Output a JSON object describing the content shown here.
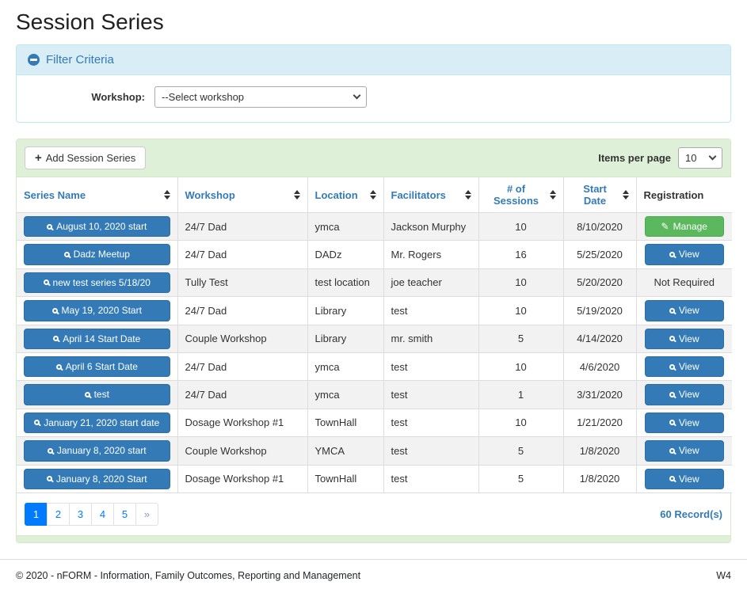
{
  "page": {
    "title": "Session Series",
    "footer": {
      "copyright": "© 2020 - nFORM - Information, Family Outcomes, Reporting and Management",
      "version": "W4"
    }
  },
  "filter": {
    "title": "Filter Criteria",
    "collapse_icon": "minus-circle-icon",
    "workshop_label": "Workshop:",
    "workshop_select_value": "--Select workshop"
  },
  "toolbar": {
    "add_button_label": "Add Session Series",
    "items_per_page_label": "Items per page",
    "items_per_page_value": "10"
  },
  "icons": {
    "plus": "+",
    "pencil": "✎"
  },
  "table": {
    "columns": [
      {
        "label": "Series Name",
        "sortable": true
      },
      {
        "label": "Workshop",
        "sortable": true
      },
      {
        "label": "Location",
        "sortable": true
      },
      {
        "label": "Facilitators",
        "sortable": true
      },
      {
        "label": "# of Sessions",
        "sortable": true
      },
      {
        "label": "Start Date",
        "sortable": true
      },
      {
        "label": "Registration",
        "sortable": false
      }
    ],
    "rows": [
      {
        "series_name": "August 10, 2020 start",
        "workshop": "24/7 Dad",
        "location": "ymca",
        "facilitators": "Jackson Murphy",
        "sessions": "10",
        "start_date": "8/10/2020",
        "registration": {
          "type": "manage",
          "label": "Manage"
        }
      },
      {
        "series_name": "Dadz Meetup",
        "workshop": "24/7 Dad",
        "location": "DADz",
        "facilitators": "Mr. Rogers",
        "sessions": "16",
        "start_date": "5/25/2020",
        "registration": {
          "type": "view",
          "label": "View"
        }
      },
      {
        "series_name": "new test series 5/18/20",
        "workshop": "Tully Test",
        "location": "test location",
        "facilitators": "joe teacher",
        "sessions": "10",
        "start_date": "5/20/2020",
        "registration": {
          "type": "text",
          "label": "Not Required"
        }
      },
      {
        "series_name": "May 19, 2020 Start",
        "workshop": "24/7 Dad",
        "location": "Library",
        "facilitators": "test",
        "sessions": "10",
        "start_date": "5/19/2020",
        "registration": {
          "type": "view",
          "label": "View"
        }
      },
      {
        "series_name": "April 14 Start Date",
        "workshop": "Couple Workshop",
        "location": "Library",
        "facilitators": "mr. smith",
        "sessions": "5",
        "start_date": "4/14/2020",
        "registration": {
          "type": "view",
          "label": "View"
        }
      },
      {
        "series_name": "April 6 Start Date",
        "workshop": "24/7 Dad",
        "location": "ymca",
        "facilitators": "test",
        "sessions": "10",
        "start_date": "4/6/2020",
        "registration": {
          "type": "view",
          "label": "View"
        }
      },
      {
        "series_name": "test",
        "workshop": "24/7 Dad",
        "location": "ymca",
        "facilitators": "test",
        "sessions": "1",
        "start_date": "3/31/2020",
        "registration": {
          "type": "view",
          "label": "View"
        }
      },
      {
        "series_name": "January 21, 2020 start date",
        "workshop": "Dosage Workshop #1",
        "location": "TownHall",
        "facilitators": "test",
        "sessions": "10",
        "start_date": "1/21/2020",
        "registration": {
          "type": "view",
          "label": "View"
        }
      },
      {
        "series_name": "January 8, 2020 start",
        "workshop": "Couple Workshop",
        "location": "YMCA",
        "facilitators": "test",
        "sessions": "5",
        "start_date": "1/8/2020",
        "registration": {
          "type": "view",
          "label": "View"
        }
      },
      {
        "series_name": "January 8, 2020 Start",
        "workshop": "Dosage Workshop #1",
        "location": "TownHall",
        "facilitators": "test",
        "sessions": "5",
        "start_date": "1/8/2020",
        "registration": {
          "type": "view",
          "label": "View"
        }
      }
    ]
  },
  "pagination": {
    "pages": [
      "1",
      "2",
      "3",
      "4",
      "5",
      "»"
    ],
    "active": "1",
    "records": "60 Record(s)"
  },
  "colors": {
    "primary": "#337ab7",
    "primary_border": "#2e6da4",
    "success": "#5cb85c",
    "success_border": "#4cae4c",
    "filter_bg": "#d9edf7",
    "filter_border": "#bce8f1",
    "toolbar_bg": "#dff0d8",
    "panel_border": "#d6e9c6",
    "pagination_active": "#007bff",
    "link_blue": "#337ab7",
    "stripe": "#f2f2f2"
  }
}
